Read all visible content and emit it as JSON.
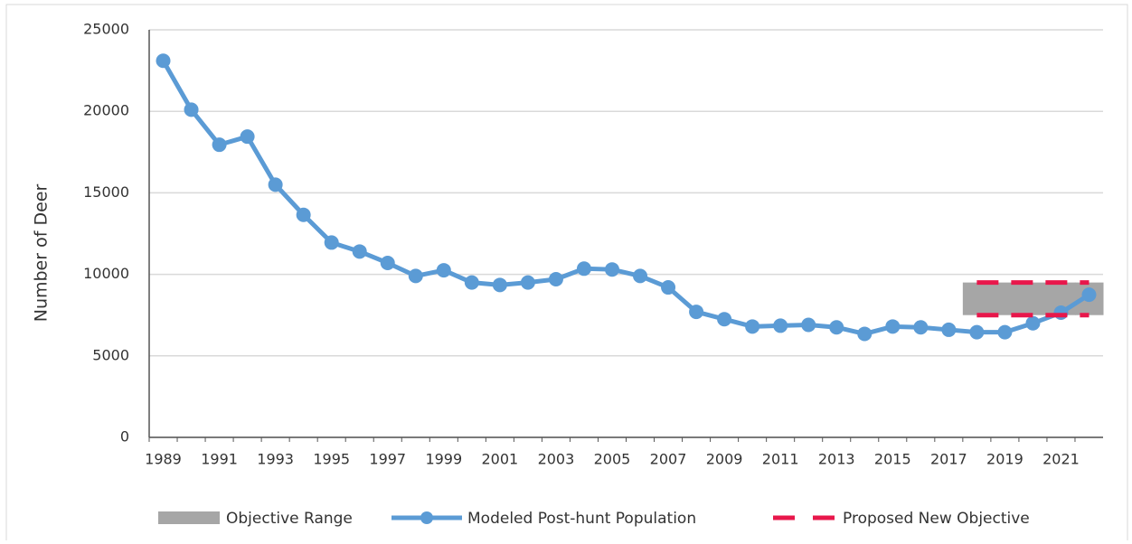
{
  "chart_data": {
    "type": "line",
    "y_label": "Number of Deer",
    "categories": [
      "1989",
      null,
      "1991",
      null,
      "1993",
      null,
      "1995",
      null,
      "1997",
      null,
      "1999",
      null,
      "2001",
      null,
      "2003",
      null,
      "2005",
      null,
      "2007",
      null,
      "2009",
      null,
      "2011",
      null,
      "2013",
      null,
      "2015",
      null,
      "2017",
      null,
      "2019",
      null,
      "2021",
      null
    ],
    "series": [
      {
        "name": "Objective Range",
        "color": "#a6a6a6",
        "kind": "band",
        "low": [
          null,
          null,
          null,
          null,
          null,
          null,
          null,
          null,
          null,
          null,
          null,
          null,
          null,
          null,
          null,
          null,
          null,
          null,
          null,
          null,
          null,
          null,
          null,
          null,
          null,
          null,
          null,
          null,
          null,
          7500,
          7500,
          7500,
          7500,
          7500
        ],
        "high": [
          null,
          null,
          null,
          null,
          null,
          null,
          null,
          null,
          null,
          null,
          null,
          null,
          null,
          null,
          null,
          null,
          null,
          null,
          null,
          null,
          null,
          null,
          null,
          null,
          null,
          null,
          null,
          null,
          null,
          9500,
          9500,
          9500,
          9500,
          9500
        ]
      },
      {
        "name": "Modeled Post-hunt Population",
        "color": "#5b9bd5",
        "kind": "line",
        "values": [
          23100,
          20100,
          17950,
          18450,
          15500,
          13650,
          11950,
          11400,
          10700,
          9900,
          10250,
          9500,
          9350,
          9500,
          9700,
          10350,
          10300,
          9900,
          9200,
          7700,
          7250,
          6800,
          6850,
          6900,
          6750,
          6350,
          6800,
          6750,
          6600,
          6450,
          6450,
          7000,
          7650,
          8750
        ]
      },
      {
        "name": "Proposed New Objective",
        "color": "#e8174b",
        "kind": "dash",
        "low": [
          null,
          null,
          null,
          null,
          null,
          null,
          null,
          null,
          null,
          null,
          null,
          null,
          null,
          null,
          null,
          null,
          null,
          null,
          null,
          null,
          null,
          null,
          null,
          null,
          null,
          null,
          null,
          null,
          null,
          7500,
          7500,
          7500,
          7500,
          7500
        ],
        "high": [
          null,
          null,
          null,
          null,
          null,
          null,
          null,
          null,
          null,
          null,
          null,
          null,
          null,
          null,
          null,
          null,
          null,
          null,
          null,
          null,
          null,
          null,
          null,
          null,
          null,
          null,
          null,
          null,
          null,
          9500,
          9500,
          9500,
          9500,
          9500
        ]
      }
    ],
    "ylim": [
      0,
      25000
    ],
    "yticks": [
      0,
      5000,
      10000,
      15000,
      20000,
      25000
    ],
    "grid": true,
    "legend": "bottom"
  }
}
